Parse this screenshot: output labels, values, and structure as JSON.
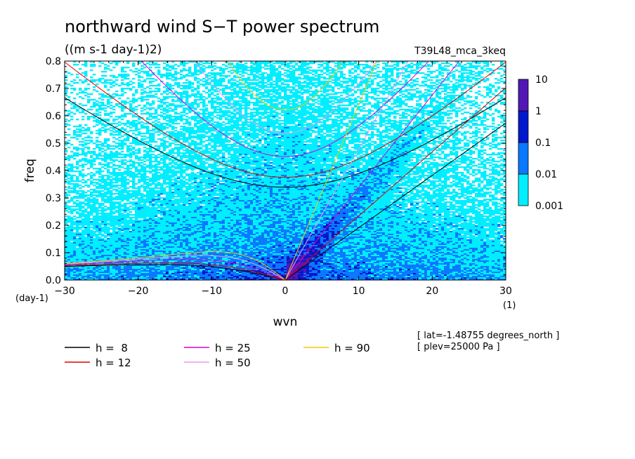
{
  "chart_data": {
    "type": "heatmap",
    "title": "northward wind S−T power spectrum",
    "subtitle": "((m s-1 day-1)2)",
    "dataset": "T39L48_mca_3keq",
    "xlabel": "wvn",
    "ylabel": "freq",
    "xunit": "(1)",
    "yunit": "(day-1)",
    "xlim": [
      -30,
      30
    ],
    "ylim": [
      0,
      0.8
    ],
    "xticks": [
      -30,
      -20,
      -10,
      0,
      10,
      20,
      30
    ],
    "xtick_labels": [
      "−30",
      "−20",
      "−10",
      "0",
      "10",
      "20",
      "30"
    ],
    "yticks": [
      0,
      0.1,
      0.2,
      0.3,
      0.4,
      0.5,
      0.6,
      0.7,
      0.8
    ],
    "ytick_labels": [
      "0.0",
      "0.1",
      "0.2",
      "0.3",
      "0.4",
      "0.5",
      "0.6",
      "0.7",
      "0.8"
    ],
    "colorbar": {
      "levels": [
        0.001,
        0.01,
        0.1,
        1,
        10
      ],
      "labels": [
        "0.001",
        "0.01",
        "0.1",
        "1",
        "10"
      ],
      "colors": [
        "#00eeff",
        "#0a78ff",
        "#0018cc",
        "#5218b4"
      ]
    },
    "dispersion_curves": [
      {
        "label": "h =  8",
        "h": 8,
        "color": "#000000"
      },
      {
        "label": "h = 12",
        "h": 12,
        "color": "#dd0000"
      },
      {
        "label": "h = 25",
        "h": 25,
        "color": "#dd00cc"
      },
      {
        "label": "h = 50",
        "h": 50,
        "color": "#ee99ee"
      },
      {
        "label": "h = 90",
        "h": 90,
        "color": "#eecc00"
      }
    ],
    "annotations": [
      "[ lat=-1.48755 degrees_north ]",
      "[ plev=25000 Pa ]"
    ],
    "grid": false,
    "legend_position": "bottom"
  }
}
